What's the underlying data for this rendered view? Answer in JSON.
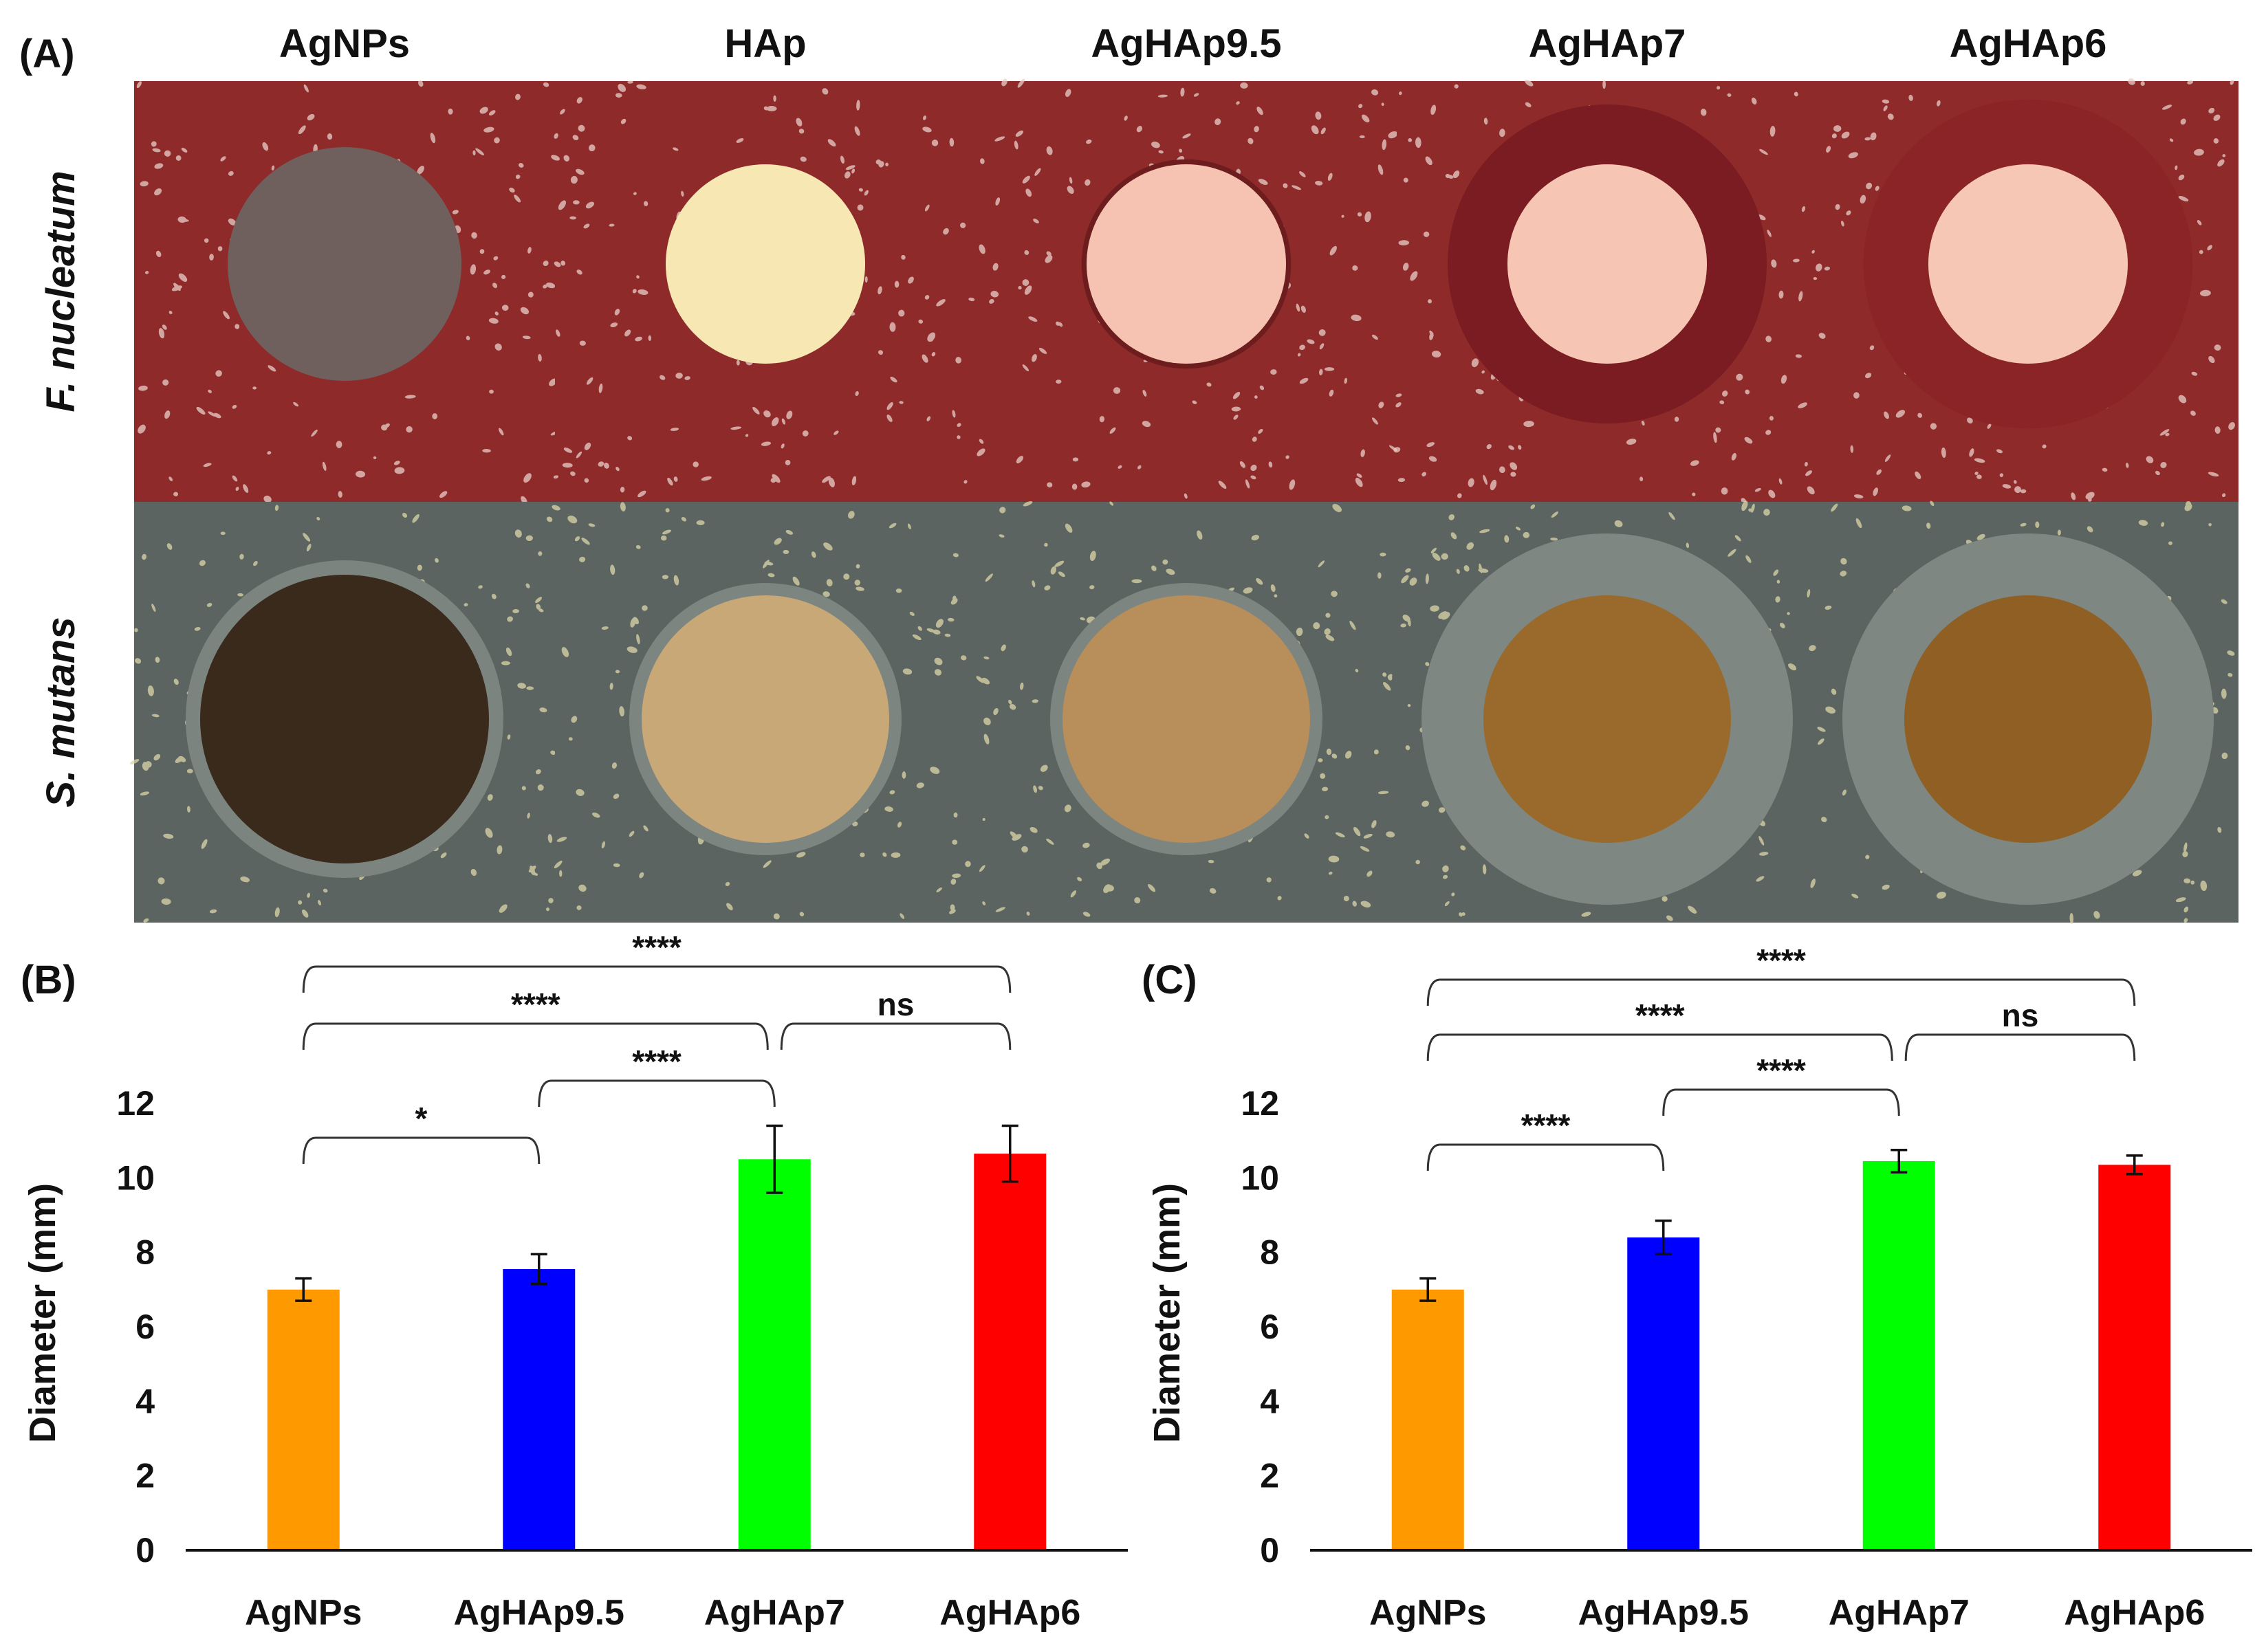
{
  "figure": {
    "panel_a_label": "(A)",
    "columns": [
      "AgNPs",
      "HAp",
      "AgHAp9.5",
      "AgHAp7",
      "AgHAp6"
    ],
    "rows": [
      {
        "label": "F. nucleatum",
        "agar_color": "#8e2a2a",
        "colony_color": "#e9cfc8"
      },
      {
        "label": "S. mutans",
        "agar_color": "#5b6460",
        "colony_color": "#ddd6a8"
      }
    ],
    "disc_colors": {
      "F. nucleatum": [
        "#6f605d",
        "#f6e7b3",
        "#f6c3b2",
        "#f6c5b4",
        "#f7c7b5"
      ],
      "S. mutans": [
        "#3a2a1c",
        "#c9a877",
        "#b88e5b",
        "#9a6a2c",
        "#8f5f24"
      ]
    },
    "zone_colors": {
      "F. nucleatum": [
        null,
        null,
        "#6e1d1f",
        "#7a1c22",
        "#8a2427"
      ],
      "S. mutans": [
        "#7b847f",
        "#7c8580",
        "#7c8580",
        "#7e8782",
        "#7e8782"
      ]
    },
    "zone_size_relative": {
      "F. nucleatum": [
        0,
        0,
        1.05,
        1.6,
        1.65
      ],
      "S. mutans": [
        1.1,
        1.1,
        1.1,
        1.5,
        1.5
      ]
    }
  },
  "chart_data": [
    {
      "panel": "(B)",
      "type": "bar",
      "ylabel": "Diameter (mm)",
      "categories": [
        "AgNPs",
        "AgHAp9.5",
        "AgHAp7",
        "AgHAp6"
      ],
      "values": [
        7.0,
        7.55,
        10.5,
        10.65
      ],
      "errors": [
        0.3,
        0.4,
        0.9,
        0.75
      ],
      "colors": [
        "#ff9900",
        "#0000ff",
        "#00ff00",
        "#ff0000"
      ],
      "ylim": [
        0,
        12
      ],
      "yticks": [
        0,
        2,
        4,
        6,
        8,
        10,
        12
      ],
      "significance": [
        {
          "from": 0,
          "to": 1,
          "label": "*",
          "level": 0
        },
        {
          "from": 1,
          "to": 2,
          "label": "****",
          "level": 1
        },
        {
          "from": 0,
          "to": 2,
          "label": "****",
          "level": 2
        },
        {
          "from": 2,
          "to": 3,
          "label": "ns",
          "level": 2
        },
        {
          "from": 0,
          "to": 3,
          "label": "****",
          "level": 3
        }
      ]
    },
    {
      "panel": "(C)",
      "type": "bar",
      "ylabel": "Diameter (mm)",
      "categories": [
        "AgNPs",
        "AgHAp9.5",
        "AgHAp7",
        "AgHAp6"
      ],
      "values": [
        7.0,
        8.4,
        10.45,
        10.35
      ],
      "errors": [
        0.3,
        0.45,
        0.3,
        0.25
      ],
      "colors": [
        "#ff9900",
        "#0000ff",
        "#00ff00",
        "#ff0000"
      ],
      "ylim": [
        0,
        12
      ],
      "yticks": [
        0,
        2,
        4,
        6,
        8,
        10,
        12
      ],
      "significance": [
        {
          "from": 0,
          "to": 1,
          "label": "****",
          "level": 0
        },
        {
          "from": 1,
          "to": 2,
          "label": "****",
          "level": 1
        },
        {
          "from": 0,
          "to": 2,
          "label": "****",
          "level": 2
        },
        {
          "from": 2,
          "to": 3,
          "label": "ns",
          "level": 2
        },
        {
          "from": 0,
          "to": 3,
          "label": "****",
          "level": 3
        }
      ]
    }
  ]
}
